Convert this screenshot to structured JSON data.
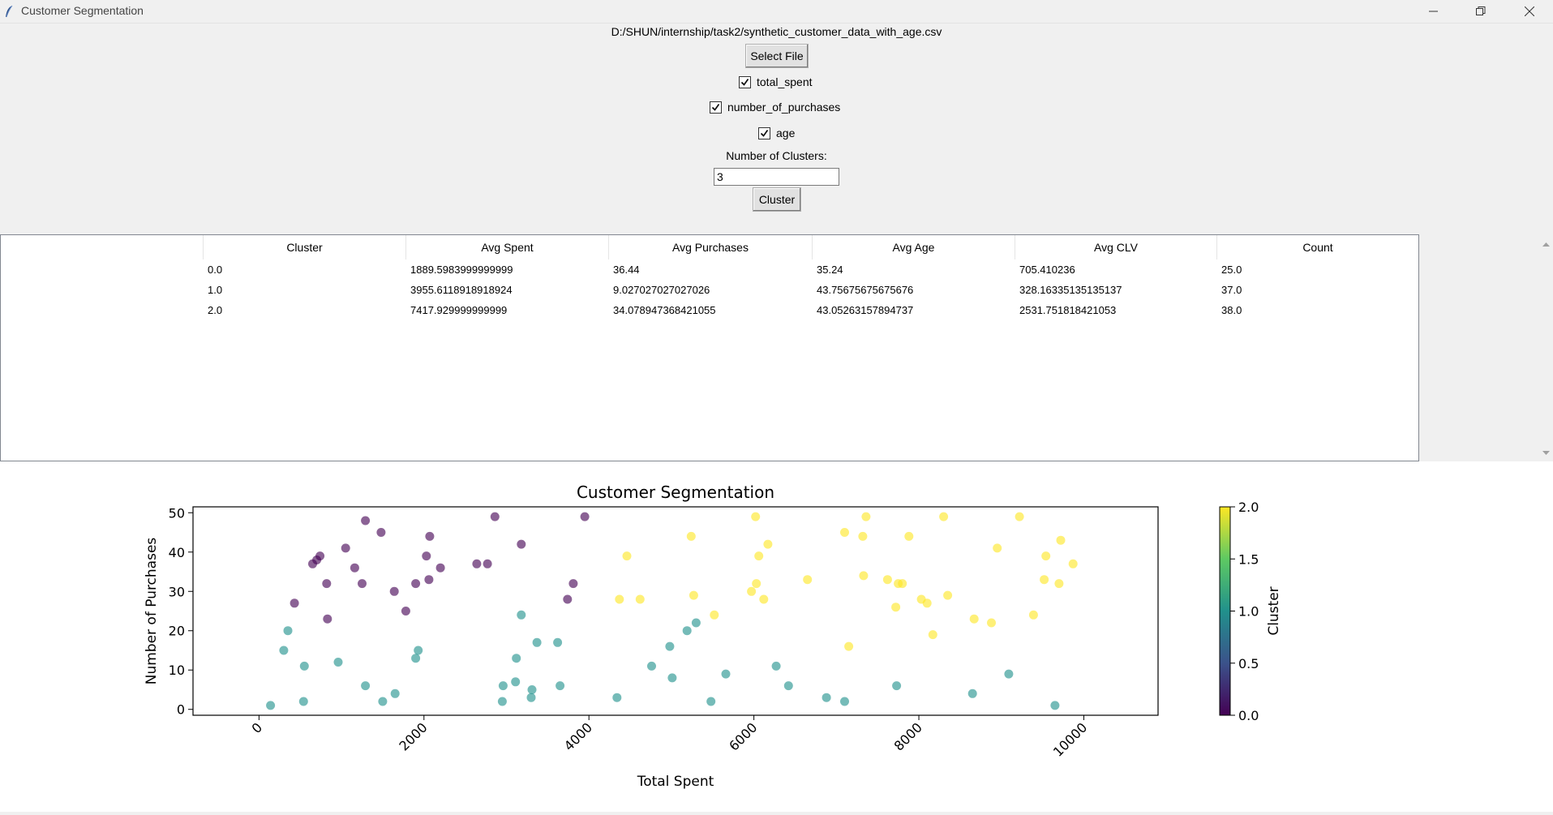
{
  "window": {
    "title": "Customer Segmentation"
  },
  "file_path": "D:/SHUN/internship/task2/synthetic_customer_data_with_age.csv",
  "buttons": {
    "select_file": "Select File",
    "cluster": "Cluster"
  },
  "features": [
    {
      "label": "total_spent",
      "checked": true
    },
    {
      "label": "number_of_purchases",
      "checked": true
    },
    {
      "label": "age",
      "checked": true
    }
  ],
  "clusters_field": {
    "label": "Number of Clusters:",
    "value": "3"
  },
  "table": {
    "columns": [
      "Cluster",
      "Avg Spent",
      "Avg Purchases",
      "Avg Age",
      "Avg CLV",
      "Count"
    ],
    "rows": [
      [
        "0.0",
        "1889.5983999999999",
        "36.44",
        "35.24",
        "705.410236",
        "25.0"
      ],
      [
        "1.0",
        "3955.6118918918924",
        "9.027027027027026",
        "43.75675675675676",
        "328.16335135135137",
        "37.0"
      ],
      [
        "2.0",
        "7417.929999999999",
        "34.078947368421055",
        "43.05263157894737",
        "2531.751818421053",
        "38.0"
      ]
    ]
  },
  "chart_data": {
    "type": "scatter",
    "title": "Customer Segmentation",
    "xlabel": "Total Spent",
    "ylabel": "Number of Purchases",
    "xlim": [
      -800,
      10900
    ],
    "ylim": [
      -1.5,
      51.5
    ],
    "x_ticks": [
      0,
      2000,
      4000,
      6000,
      8000,
      10000
    ],
    "x_tick_labels": [
      "0",
      "2000",
      "4000",
      "6000",
      "8000",
      "10000"
    ],
    "y_ticks": [
      0,
      10,
      20,
      30,
      40,
      50
    ],
    "y_tick_labels": [
      "0",
      "10",
      "20",
      "30",
      "40",
      "50"
    ],
    "colorbar": {
      "label": "Cluster",
      "ticks": [
        0.0,
        0.5,
        1.0,
        1.5,
        2.0
      ],
      "tick_labels": [
        "0.0",
        "0.5",
        "1.0",
        "1.5",
        "2.0"
      ],
      "colormap": "viridis"
    },
    "colors": {
      "cluster_0": "#440154",
      "cluster_1": "#21918c",
      "cluster_2": "#fde725"
    },
    "series": [
      {
        "cluster": 0,
        "points": [
          [
            430,
            27
          ],
          [
            650,
            37
          ],
          [
            700,
            38
          ],
          [
            740,
            39
          ],
          [
            820,
            32
          ],
          [
            830,
            23
          ],
          [
            1050,
            41
          ],
          [
            1160,
            36
          ],
          [
            1250,
            32
          ],
          [
            1290,
            48
          ],
          [
            1480,
            45
          ],
          [
            1640,
            30
          ],
          [
            1780,
            25
          ],
          [
            1900,
            32
          ],
          [
            2030,
            39
          ],
          [
            2060,
            33
          ],
          [
            2070,
            44
          ],
          [
            2200,
            36
          ],
          [
            2640,
            37
          ],
          [
            2770,
            37
          ],
          [
            2860,
            49
          ],
          [
            3180,
            42
          ],
          [
            3740,
            28
          ],
          [
            3810,
            32
          ],
          [
            3950,
            49
          ]
        ]
      },
      {
        "cluster": 1,
        "points": [
          [
            140,
            1
          ],
          [
            300,
            15
          ],
          [
            350,
            20
          ],
          [
            540,
            2
          ],
          [
            550,
            11
          ],
          [
            960,
            12
          ],
          [
            1290,
            6
          ],
          [
            1500,
            2
          ],
          [
            1650,
            4
          ],
          [
            1900,
            13
          ],
          [
            1930,
            15
          ],
          [
            2950,
            2
          ],
          [
            2960,
            6
          ],
          [
            3110,
            7
          ],
          [
            3120,
            13
          ],
          [
            3180,
            24
          ],
          [
            3300,
            3
          ],
          [
            3310,
            5
          ],
          [
            3370,
            17
          ],
          [
            3620,
            17
          ],
          [
            3650,
            6
          ],
          [
            4340,
            3
          ],
          [
            4760,
            11
          ],
          [
            4980,
            16
          ],
          [
            5010,
            8
          ],
          [
            5190,
            20
          ],
          [
            5300,
            22
          ],
          [
            5480,
            2
          ],
          [
            5660,
            9
          ],
          [
            6270,
            11
          ],
          [
            6420,
            6
          ],
          [
            6880,
            3
          ],
          [
            7100,
            2
          ],
          [
            7730,
            6
          ],
          [
            8650,
            4
          ],
          [
            9090,
            9
          ],
          [
            9650,
            1
          ]
        ]
      },
      {
        "cluster": 2,
        "points": [
          [
            4370,
            28
          ],
          [
            4460,
            39
          ],
          [
            4620,
            28
          ],
          [
            5240,
            44
          ],
          [
            5270,
            29
          ],
          [
            5520,
            24
          ],
          [
            5970,
            30
          ],
          [
            6020,
            49
          ],
          [
            6030,
            32
          ],
          [
            6060,
            39
          ],
          [
            6120,
            28
          ],
          [
            6170,
            42
          ],
          [
            6650,
            33
          ],
          [
            7100,
            45
          ],
          [
            7150,
            16
          ],
          [
            7320,
            44
          ],
          [
            7330,
            34
          ],
          [
            7360,
            49
          ],
          [
            7620,
            33
          ],
          [
            7720,
            26
          ],
          [
            7750,
            32
          ],
          [
            7800,
            32
          ],
          [
            7880,
            44
          ],
          [
            8030,
            28
          ],
          [
            8100,
            27
          ],
          [
            8170,
            19
          ],
          [
            8300,
            49
          ],
          [
            8350,
            29
          ],
          [
            8670,
            23
          ],
          [
            8880,
            22
          ],
          [
            8950,
            41
          ],
          [
            9220,
            49
          ],
          [
            9390,
            24
          ],
          [
            9520,
            33
          ],
          [
            9540,
            39
          ],
          [
            9700,
            32
          ],
          [
            9720,
            43
          ],
          [
            9870,
            37
          ]
        ]
      }
    ]
  }
}
